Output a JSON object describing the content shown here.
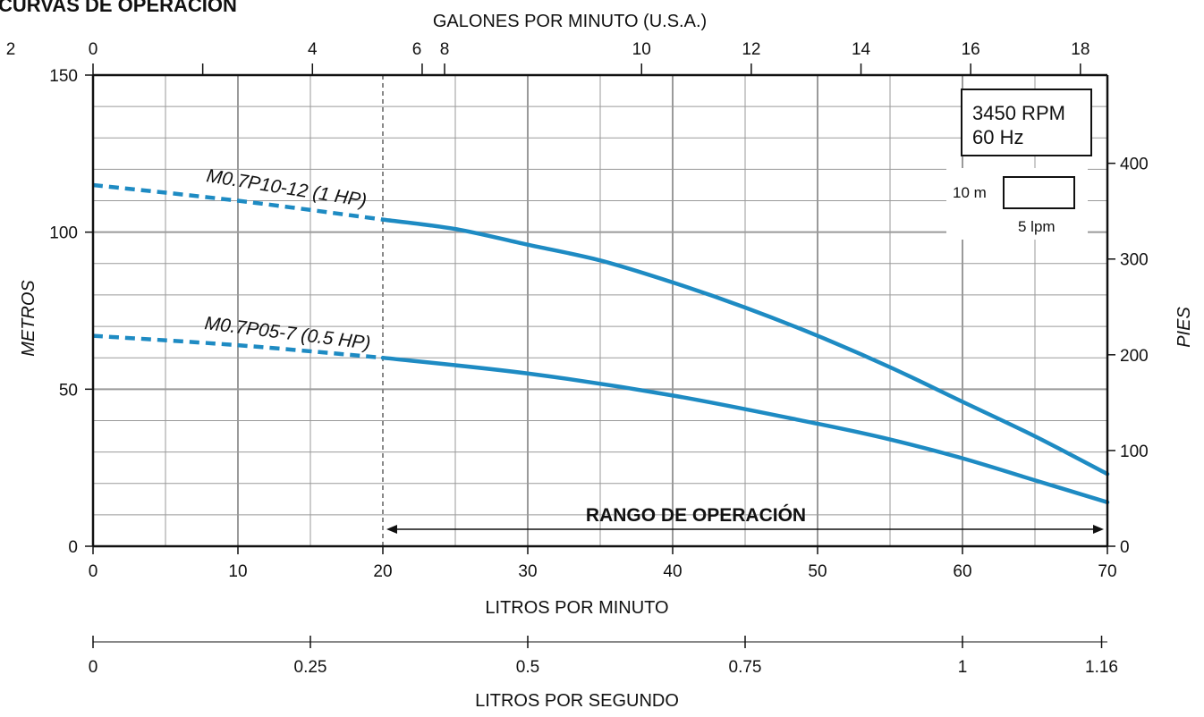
{
  "page_title": "CURVAS DE OPERACIÓN",
  "colors": {
    "curve": "#1e8bc3",
    "grid": "#9a9a9a",
    "frame": "#111111"
  },
  "chart_data": {
    "type": "line",
    "xlabel": "LITROS POR MINUTO",
    "ylabel_left": "METROS",
    "ylabel_right": "PIES",
    "top_axis_label": "GALONES POR MINUTO (U.S.A.)",
    "bottom2_axis_label": "LITROS POR SEGUNDO",
    "xlim": [
      0,
      70
    ],
    "ylim": [
      0,
      150
    ],
    "x_ticks": [
      0,
      10,
      20,
      30,
      40,
      50,
      60,
      70
    ],
    "y_ticks": [
      0,
      50,
      100,
      150
    ],
    "right_ticks_ft": [
      0,
      100,
      200,
      300,
      400
    ],
    "gpm_ticks": [
      "0",
      "2",
      "4",
      "6",
      "8",
      "10",
      "12",
      "14",
      "16",
      "18"
    ],
    "lps_ticks": [
      "0",
      "0.25",
      "0.5",
      "0.75",
      "1",
      "1.16"
    ],
    "lps_values": [
      0,
      0.25,
      0.5,
      0.75,
      1,
      1.16
    ],
    "grid": true,
    "rpm_box": {
      "line1": "3450 RPM",
      "line2": "60 Hz"
    },
    "scale_box": {
      "vertical_label": "10 m",
      "horizontal_label": "5 lpm"
    },
    "operating_range": {
      "label": "RANGO DE OPERACIÓN",
      "from": 20,
      "to": 70
    },
    "series": [
      {
        "name": "M0.7P10-12 (1 HP)",
        "dashed_to": 20,
        "x": [
          0,
          10,
          20,
          25,
          30,
          35,
          40,
          45,
          50,
          55,
          60,
          65,
          70
        ],
        "y": [
          115,
          110,
          104,
          101,
          96,
          91,
          84,
          76,
          67,
          57,
          46,
          35,
          23
        ]
      },
      {
        "name": "M0.7P05-7 (0.5 HP)",
        "dashed_to": 20,
        "x": [
          0,
          10,
          20,
          30,
          40,
          50,
          55,
          60,
          65,
          70
        ],
        "y": [
          67,
          64,
          60,
          55,
          48,
          39,
          34,
          28,
          21,
          14
        ]
      }
    ]
  }
}
